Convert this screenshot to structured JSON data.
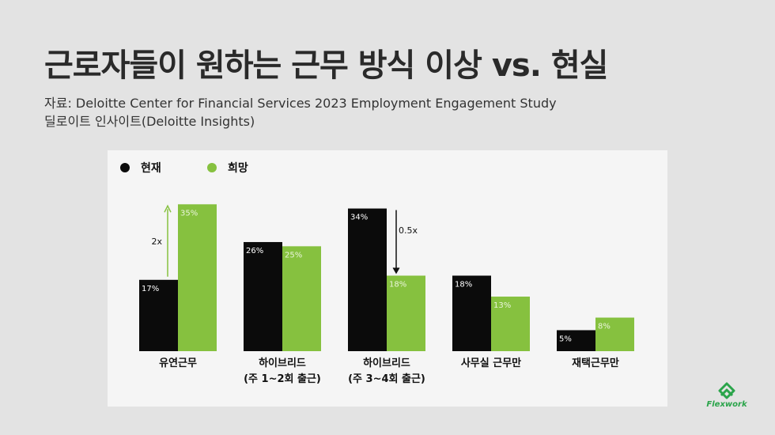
{
  "title": "근로자들이 원하는 근무 방식 이상 vs. 현실",
  "source_line1": "자료: Deloitte Center for Financial Services 2023 Employment Engagement Study",
  "source_line2": "딜로이트 인사이트(Deloitte Insights)",
  "colors": {
    "current": "#0b0b0b",
    "desired": "#86c13f",
    "panel": "#f5f5f5"
  },
  "logo_text": "Flexwork",
  "chart_data": {
    "type": "bar",
    "title": "",
    "legend": [
      {
        "name": "현재",
        "color": "#0b0b0b"
      },
      {
        "name": "희망",
        "color": "#86c13f"
      }
    ],
    "categories": [
      [
        "유연근무"
      ],
      [
        "하이브리드",
        "(주 1~2회 출근)"
      ],
      [
        "하이브리드",
        "(주 3~4회 출근)"
      ],
      [
        "사무실 근무만"
      ],
      [
        "재택근무만"
      ]
    ],
    "series": [
      {
        "name": "현재",
        "values": [
          17,
          26,
          34,
          18,
          5
        ]
      },
      {
        "name": "희망",
        "values": [
          35,
          25,
          18,
          13,
          8
        ]
      }
    ],
    "value_labels": {
      "현재": [
        "17%",
        "26%",
        "34%",
        "18%",
        "5%"
      ],
      "희망": [
        "35%",
        "25%",
        "18%",
        "13%",
        "8%"
      ]
    },
    "annotations": [
      {
        "category": 0,
        "text": "2x",
        "direction": "up"
      },
      {
        "category": 2,
        "text": "0.5x",
        "direction": "down"
      }
    ],
    "ylim": [
      0,
      36
    ],
    "xlabel": "",
    "ylabel": "",
    "grid": false,
    "legend_position": "top-left"
  }
}
